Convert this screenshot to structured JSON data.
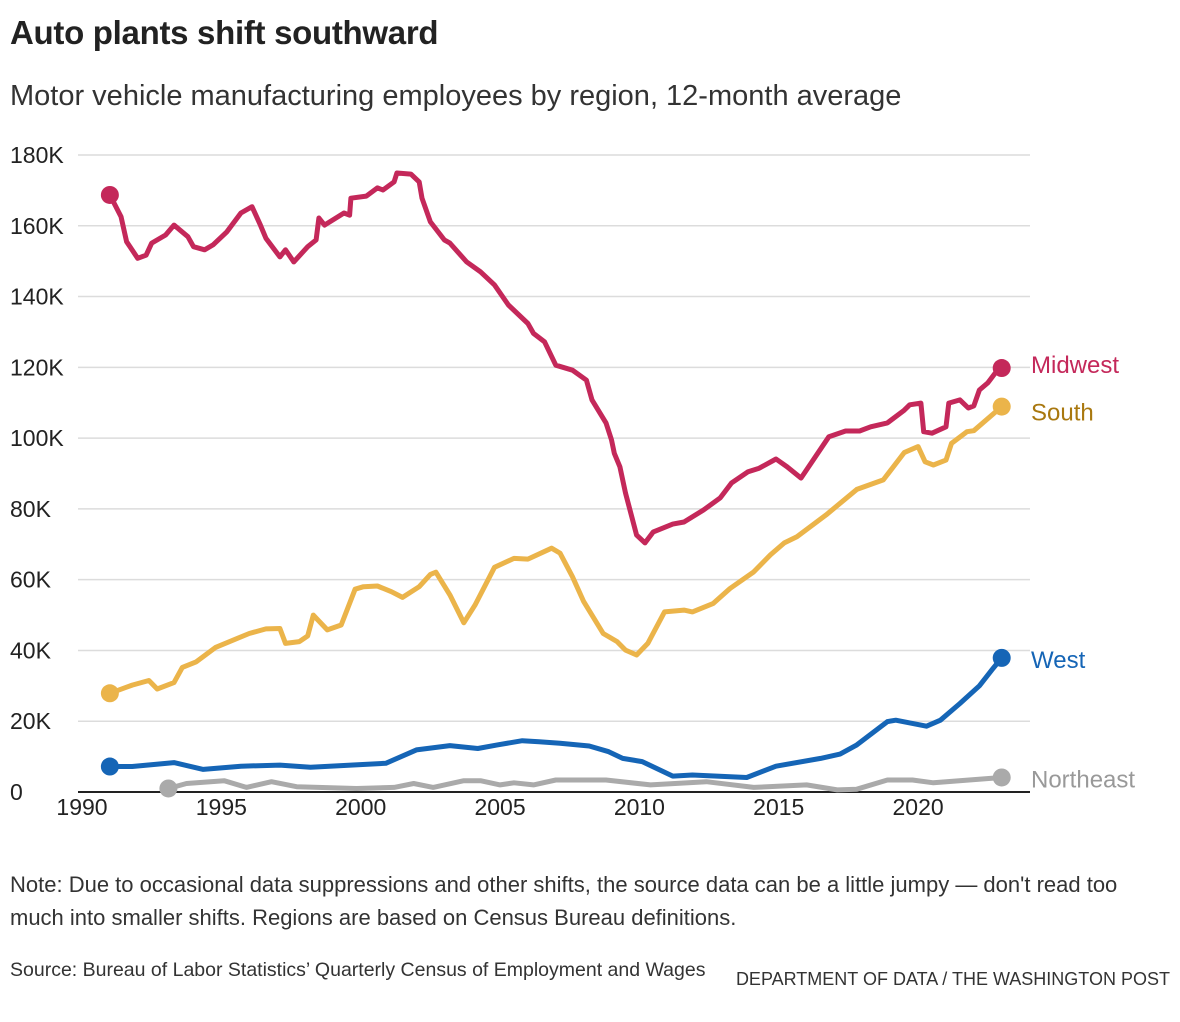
{
  "title": "Auto plants shift southward",
  "subtitle": "Motor vehicle manufacturing employees by region, 12-month average",
  "note": "Note: Due to occasional data suppressions and other shifts, the source data can be a little jumpy — don't read too much into smaller shifts. Regions are based on Census Bureau definitions.",
  "source": "Source: Bureau of Labor Statistics’ Quarterly Census of Employment and Wages",
  "credit": "DEPARTMENT OF DATA / THE WASHINGTON POST",
  "chart_data": {
    "type": "line",
    "title": "Auto plants shift southward",
    "subtitle": "Motor vehicle manufacturing employees by region, 12-month average",
    "xlim": [
      1990,
      2023.6
    ],
    "ylim": [
      0,
      180000
    ],
    "x_ticks": [
      1990,
      1995,
      2000,
      2005,
      2010,
      2015,
      2020
    ],
    "x_tick_labels": [
      "1990",
      "1995",
      "2000",
      "2005",
      "2010",
      "2015",
      "2020"
    ],
    "y_ticks": [
      0,
      20000,
      40000,
      60000,
      80000,
      100000,
      120000,
      140000,
      160000,
      180000
    ],
    "y_tick_labels": [
      "0",
      "20K",
      "40K",
      "60K",
      "80K",
      "100K",
      "120K",
      "140K",
      "160K",
      "180K"
    ],
    "grid": true,
    "legend": "direct labels at line ends (right)",
    "series": [
      {
        "name": "Midwest",
        "color": "#c4285a",
        "label_color": "#c4285a",
        "x": [
          1991.0,
          1991.4,
          1991.6,
          1992.0,
          1992.3,
          1992.5,
          1993.0,
          1993.3,
          1993.8,
          1994.0,
          1994.4,
          1994.7,
          1995.2,
          1995.7,
          1996.1,
          1996.4,
          1996.6,
          1997.1,
          1997.3,
          1997.6,
          1998.1,
          1998.4,
          1998.5,
          1998.7,
          1999.4,
          1999.6,
          1999.65,
          2000.2,
          2000.6,
          2000.8,
          2001.2,
          2001.3,
          2001.8,
          2002.1,
          2002.2,
          2002.5,
          2003.0,
          2003.2,
          2003.8,
          2004.3,
          2004.8,
          2005.3,
          2006.0,
          2006.2,
          2006.6,
          2007.0,
          2007.6,
          2008.1,
          2008.3,
          2008.8,
          2009.0,
          2009.1,
          2009.3,
          2009.5,
          2009.9,
          2010.2,
          2010.5,
          2011.2,
          2011.6,
          2012.3,
          2012.9,
          2013.3,
          2013.9,
          2014.3,
          2014.9,
          2015.3,
          2015.8,
          2016.8,
          2017.4,
          2017.9,
          2018.3,
          2018.9,
          2019.5,
          2019.7,
          2020.1,
          2020.2,
          2020.5,
          2021.0,
          2021.1,
          2021.5,
          2021.8,
          2022.0,
          2022.2,
          2022.5,
          2022.8,
          2023.0
        ],
        "y": [
          168700,
          162600,
          155500,
          150800,
          151700,
          155100,
          157400,
          160200,
          156900,
          154100,
          153200,
          154600,
          158300,
          163600,
          165400,
          160200,
          156500,
          151200,
          153200,
          149800,
          154100,
          156000,
          162200,
          160200,
          163600,
          163000,
          167800,
          168400,
          170700,
          170100,
          172400,
          174900,
          174600,
          172400,
          167800,
          161100,
          156000,
          155100,
          149800,
          147000,
          143300,
          137600,
          132400,
          129600,
          127200,
          120600,
          119200,
          116400,
          110800,
          104300,
          99500,
          95700,
          91900,
          84500,
          72600,
          70400,
          73500,
          75700,
          76300,
          79700,
          83100,
          87300,
          90500,
          91500,
          94100,
          91900,
          88700,
          100400,
          102000,
          102000,
          103200,
          104300,
          107900,
          109400,
          109900,
          101800,
          101400,
          103200,
          109900,
          110800,
          108500,
          109100,
          113600,
          115600,
          118700,
          119800
        ]
      },
      {
        "name": "South",
        "color": "#ebb44a",
        "label_color": "#a9780f",
        "x": [
          1991.0,
          1991.8,
          1992.4,
          1992.7,
          1993.3,
          1993.6,
          1994.1,
          1994.8,
          1996.0,
          1996.6,
          1997.1,
          1997.3,
          1997.8,
          1998.1,
          1998.3,
          1998.8,
          1999.3,
          1999.8,
          2000.1,
          2000.6,
          2001.1,
          2001.5,
          2002.1,
          2002.5,
          2002.7,
          2003.2,
          2003.7,
          2004.1,
          2004.8,
          2005.5,
          2006.0,
          2006.85,
          2007.15,
          2007.6,
          2008.0,
          2008.7,
          2009.2,
          2009.5,
          2009.9,
          2010.3,
          2010.9,
          2011.6,
          2011.9,
          2012.65,
          2013.25,
          2014.1,
          2014.7,
          2015.2,
          2015.65,
          2016.7,
          2017.8,
          2018.75,
          2019.5,
          2020.0,
          2020.25,
          2020.55,
          2021.0,
          2021.2,
          2021.75,
          2022.0,
          2023.0
        ],
        "y": [
          27900,
          30200,
          31500,
          29100,
          30900,
          35200,
          36800,
          40900,
          44800,
          46100,
          46200,
          42000,
          42500,
          44100,
          50000,
          45800,
          47200,
          57300,
          58000,
          58200,
          56600,
          55000,
          58000,
          61500,
          62100,
          55700,
          47800,
          52800,
          63500,
          66000,
          65800,
          68900,
          67500,
          60800,
          53800,
          44800,
          42500,
          40100,
          38700,
          42000,
          50900,
          51400,
          50900,
          53300,
          57500,
          62200,
          67000,
          70400,
          72100,
          78300,
          85500,
          88200,
          95900,
          97600,
          93300,
          92400,
          93800,
          98500,
          101800,
          102100,
          108900
        ]
      },
      {
        "name": "West",
        "color": "#1565b6",
        "label_color": "#1565b6",
        "x": [
          1991.0,
          1991.8,
          1993.3,
          1994.35,
          1995.7,
          1997.1,
          1998.2,
          2000.9,
          2002.0,
          2003.2,
          2004.2,
          2004.9,
          2005.8,
          2006.4,
          2007.15,
          2008.2,
          2008.9,
          2009.4,
          2010.1,
          2011.2,
          2011.9,
          2013.85,
          2014.9,
          2016.5,
          2017.2,
          2017.8,
          2018.9,
          2019.2,
          2020.3,
          2020.8,
          2021.5,
          2022.2,
          2022.7,
          2023.0
        ],
        "y": [
          7200,
          7200,
          8300,
          6400,
          7300,
          7600,
          7000,
          8100,
          11900,
          13100,
          12300,
          13300,
          14500,
          14200,
          13800,
          13000,
          11400,
          9500,
          8600,
          4500,
          4800,
          4100,
          7300,
          9500,
          10700,
          13300,
          19900,
          20300,
          18600,
          20300,
          25000,
          30000,
          35000,
          37900
        ]
      },
      {
        "name": "Northeast",
        "color": "#aaaaaa",
        "label_color": "#999999",
        "x": [
          1993.1,
          1993.75,
          1995.1,
          1995.9,
          1996.8,
          1997.7,
          1999.85,
          2001.2,
          2001.9,
          2002.6,
          2003.7,
          2004.3,
          2005.0,
          2005.5,
          2006.2,
          2007.0,
          2008.8,
          2010.4,
          2012.4,
          2014.1,
          2016.0,
          2017.1,
          2017.8,
          2018.9,
          2019.8,
          2020.55,
          2023.0
        ],
        "y": [
          1000,
          2400,
          3200,
          1300,
          2900,
          1500,
          1000,
          1300,
          2400,
          1300,
          3200,
          3200,
          2000,
          2600,
          2000,
          3400,
          3400,
          2000,
          2900,
          1300,
          2000,
          600,
          800,
          3400,
          3400,
          2600,
          4100
        ]
      }
    ]
  }
}
